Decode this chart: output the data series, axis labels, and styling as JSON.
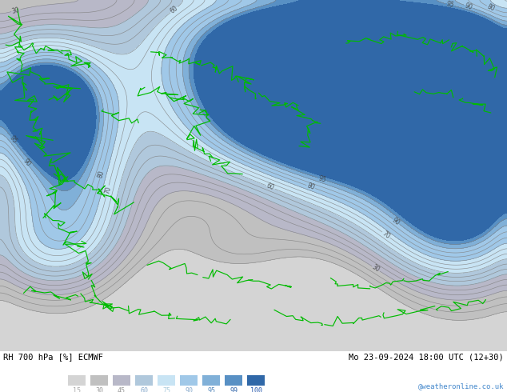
{
  "title_left": "RH 700 hPa [%] ECMWF",
  "title_right": "Mo 23-09-2024 18:00 UTC (12+30)",
  "credit": "@weatheronline.co.uk",
  "legend_values": [
    15,
    30,
    45,
    60,
    75,
    90,
    95,
    99,
    100
  ],
  "colormap_levels": [
    0,
    15,
    30,
    45,
    60,
    75,
    90,
    95,
    99,
    100
  ],
  "colormap_colors": [
    "#d4d4d4",
    "#c0c0c0",
    "#b8b8c8",
    "#b0c8dc",
    "#c8e4f4",
    "#a0c8e8",
    "#80b0d8",
    "#5890c4",
    "#3068a8"
  ],
  "legend_colors": [
    "#d4d4d4",
    "#c0c0c0",
    "#b8b8c8",
    "#b0c8dc",
    "#c8e4f4",
    "#a0c8e8",
    "#80b0d8",
    "#5890c4",
    "#3068a8"
  ],
  "legend_text_colors": [
    "#aaaaaa",
    "#999999",
    "#999999",
    "#88aacc",
    "#aaccdd",
    "#88aacc",
    "#5588bb",
    "#3366aa",
    "#2255aa"
  ],
  "contour_levels": [
    15,
    20,
    25,
    30,
    35,
    40,
    45,
    50,
    55,
    60,
    65,
    70,
    75,
    80,
    85,
    90,
    95
  ],
  "contour_label_levels": [
    30,
    60,
    70,
    80,
    90,
    95
  ],
  "contour_color": "#808080",
  "border_color": "#00bb00",
  "fig_width": 6.34,
  "fig_height": 4.9,
  "dpi": 100,
  "map_bg": "#d0d0d0"
}
